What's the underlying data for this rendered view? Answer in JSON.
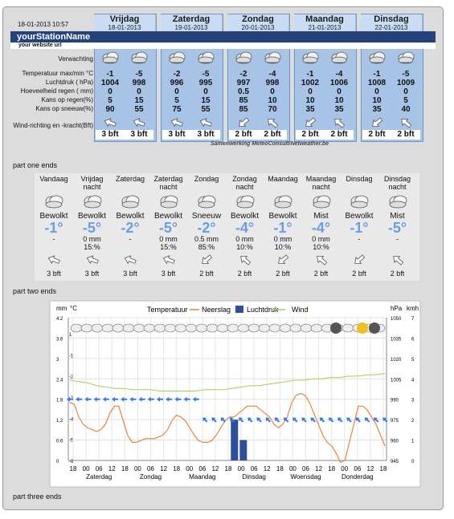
{
  "header": {
    "date": "18-01-2013 10:57",
    "station_name": "yourStationName",
    "website": "your website url"
  },
  "part_one": {
    "days": [
      {
        "name": "Vrijdag",
        "date": "18-01-2013"
      },
      {
        "name": "Zaterdag",
        "date": "19-01-2013"
      },
      {
        "name": "Zondag",
        "date": "20-01-2013"
      },
      {
        "name": "Maandag",
        "date": "21-01-2013"
      },
      {
        "name": "Dinsdag",
        "date": "22-01-2013"
      }
    ],
    "row_labels": {
      "forecast": "Verwachting",
      "temperature": "Temperatuur max/min °C",
      "pressure": "Luchtdruk ( hPa)",
      "rain_amount": "Hoeveelheid regen ( mm)",
      "rain_chance": "Kans op regen(%)",
      "snow_chance": "Kans op sneeuw(%)",
      "wind": "Wind-richting en -kracht(Bft)"
    },
    "values": {
      "temperature": [
        "-1",
        "-5",
        "-2",
        "-5",
        "-2",
        "-4",
        "-1",
        "-4",
        "-1",
        "-5"
      ],
      "pressure": [
        "1004",
        "998",
        "996",
        "995",
        "997",
        "998",
        "1002",
        "1006",
        "1008",
        "1009"
      ],
      "rain_amount": [
        "0",
        "0",
        "0",
        "0",
        "0.5",
        "0",
        "0",
        "0",
        "0",
        "0"
      ],
      "rain_chance": [
        "5",
        "15",
        "5",
        "15",
        "85",
        "10",
        "10",
        "10",
        "10",
        "5"
      ],
      "snow_chance": [
        "90",
        "55",
        "75",
        "55",
        "85",
        "70",
        "35",
        "35",
        "35",
        "40"
      ],
      "wind": [
        "3 bft",
        "3 bft",
        "3 bft",
        "3 bft",
        "2 bft",
        "2 bft",
        "2 bft",
        "2 bft",
        "2 bft",
        "2 bft"
      ]
    },
    "credit": "Samenwerking MeteoConsult/Netweather.be",
    "end_label": "part one ends"
  },
  "part_two": {
    "columns": [
      {
        "name": "Vandaag",
        "cond": "Bewolkt",
        "temp": "-1°",
        "rain": "-",
        "pct": "",
        "wind": "3 bft"
      },
      {
        "name": "Vrijdag nacht",
        "cond": "Bewolkt",
        "temp": "-5°",
        "rain": "0 mm",
        "pct": "15:%",
        "wind": "3 bft"
      },
      {
        "name": "Zaterdag",
        "cond": "Bewolkt",
        "temp": "-2°",
        "rain": "-",
        "pct": "",
        "wind": "3 bft"
      },
      {
        "name": "Zaterdag nacht",
        "cond": "Bewolkt",
        "temp": "-5°",
        "rain": "0 mm",
        "pct": "15:%",
        "wind": "3 bft"
      },
      {
        "name": "Zondag",
        "cond": "Sneeuw",
        "temp": "-2°",
        "rain": "0.5 mm",
        "pct": "85:%",
        "wind": "2 bft"
      },
      {
        "name": "Zondag nacht",
        "cond": "Bewolkt",
        "temp": "-4°",
        "rain": "0 mm",
        "pct": "10:%",
        "wind": "2 bft"
      },
      {
        "name": "Maandag",
        "cond": "Bewolkt",
        "temp": "-1°",
        "rain": "0 mm",
        "pct": "10:%",
        "wind": "2 bft"
      },
      {
        "name": "Maandag nacht",
        "cond": "Mist",
        "temp": "-4°",
        "rain": "0 mm",
        "pct": "10:%",
        "wind": "2 bft"
      },
      {
        "name": "Dinsdag",
        "cond": "Bewolkt",
        "temp": "-1°",
        "rain": "-",
        "pct": "",
        "wind": "2 bft"
      },
      {
        "name": "Dinsdag nacht",
        "cond": "Mist",
        "temp": "-5°",
        "rain": "-",
        "pct": "",
        "wind": "2 bft"
      }
    ],
    "end_label": "part two ends"
  },
  "part_three": {
    "end_label": "part three ends"
  },
  "chart_data": {
    "type": "line",
    "legend": [
      "Temperatuur",
      "Neerslag",
      "Luchtdruk",
      "Wind"
    ],
    "axes": {
      "left_outer_label": "mm",
      "left_outer_ticks": [
        "4.2",
        "3.6",
        "3",
        "2.4",
        "1.8",
        "1.2",
        "0.6",
        "0"
      ],
      "left_inner_label": "°C",
      "left_inner_ticks": [
        "1",
        "-1",
        "-2",
        "-3",
        "-4",
        "-5",
        "-6"
      ],
      "right_inner_label": "hPa",
      "right_inner_ticks": [
        "1050",
        "1035",
        "1020",
        "1005",
        "990",
        "975",
        "960",
        "945"
      ],
      "right_outer_label": "kmh",
      "right_outer_ticks": [
        "7",
        "6",
        "5",
        "4",
        "3",
        "2",
        "1",
        "0"
      ],
      "x_hour_ticks": [
        "18",
        "00",
        "06",
        "12",
        "18",
        "00",
        "06",
        "12",
        "18",
        "00",
        "06",
        "12",
        "18",
        "00",
        "06",
        "12",
        "18",
        "00",
        "06",
        "12",
        "18",
        "00",
        "06",
        "12",
        "18"
      ],
      "x_day_labels": [
        "Zaterdag",
        "Zondag",
        "Maandag",
        "Dinsdag",
        "Woensdag",
        "Donderdag"
      ]
    },
    "colors": {
      "temperature": "#e8843a",
      "precipitation": "#2d4f9a",
      "pressure": "#9fce5a",
      "wind": "#3a7ae0"
    },
    "temperature": [
      -2.8,
      -2.9,
      -3.6,
      -4.0,
      -4.2,
      -4.3,
      -4.4,
      -4.3,
      -4.0,
      -3.4,
      -3.0,
      -3.0,
      -3.8,
      -4.6,
      -5.0,
      -5.0,
      -4.9,
      -4.8,
      -4.8,
      -4.8,
      -4.7,
      -4.6,
      -4.3,
      -3.8,
      -3.5,
      -3.6,
      -3.8,
      -4.2,
      -4.6,
      -4.9,
      -5.0,
      -5.0,
      -4.9,
      -4.6,
      -4.2,
      -3.8,
      -3.6,
      -3.6,
      -3.4,
      -3.2,
      -3.0,
      -3.0,
      -3.0,
      -3.2,
      -3.4,
      -3.6,
      -4.0,
      -4.2,
      -4.0,
      -3.6,
      -2.8,
      -2.4,
      -2.3,
      -2.4,
      -2.8,
      -3.4,
      -4.0,
      -4.6,
      -5.0,
      -5.2,
      -5.6,
      -6.1,
      -6.0,
      -5.0,
      -4.0,
      -3.0,
      -3.0,
      -3.2,
      -3.6,
      -4.0,
      -4.6,
      -5.2
    ],
    "pressure": [
      1004,
      1003,
      1002,
      1000,
      999,
      998,
      998,
      997,
      997,
      997,
      996,
      996,
      996,
      996,
      996,
      997,
      997,
      997,
      998,
      999,
      1000,
      1000,
      1001,
      1002,
      1003,
      1004,
      1004,
      1005,
      1005,
      1006,
      1006,
      1007,
      1007,
      1008,
      1008,
      1009
    ],
    "precipitation": [
      {
        "x": 37,
        "mm": 1.2
      },
      {
        "x": 39,
        "mm": 0.6
      }
    ],
    "wind_kmh": [
      3,
      3,
      3,
      3,
      3,
      3,
      3,
      3,
      3,
      3,
      3,
      3,
      3,
      3,
      3,
      2,
      2,
      2,
      2,
      2,
      2,
      2,
      2,
      2,
      2,
      2,
      2,
      2,
      2,
      2,
      2,
      2,
      2,
      2,
      2,
      2
    ]
  }
}
